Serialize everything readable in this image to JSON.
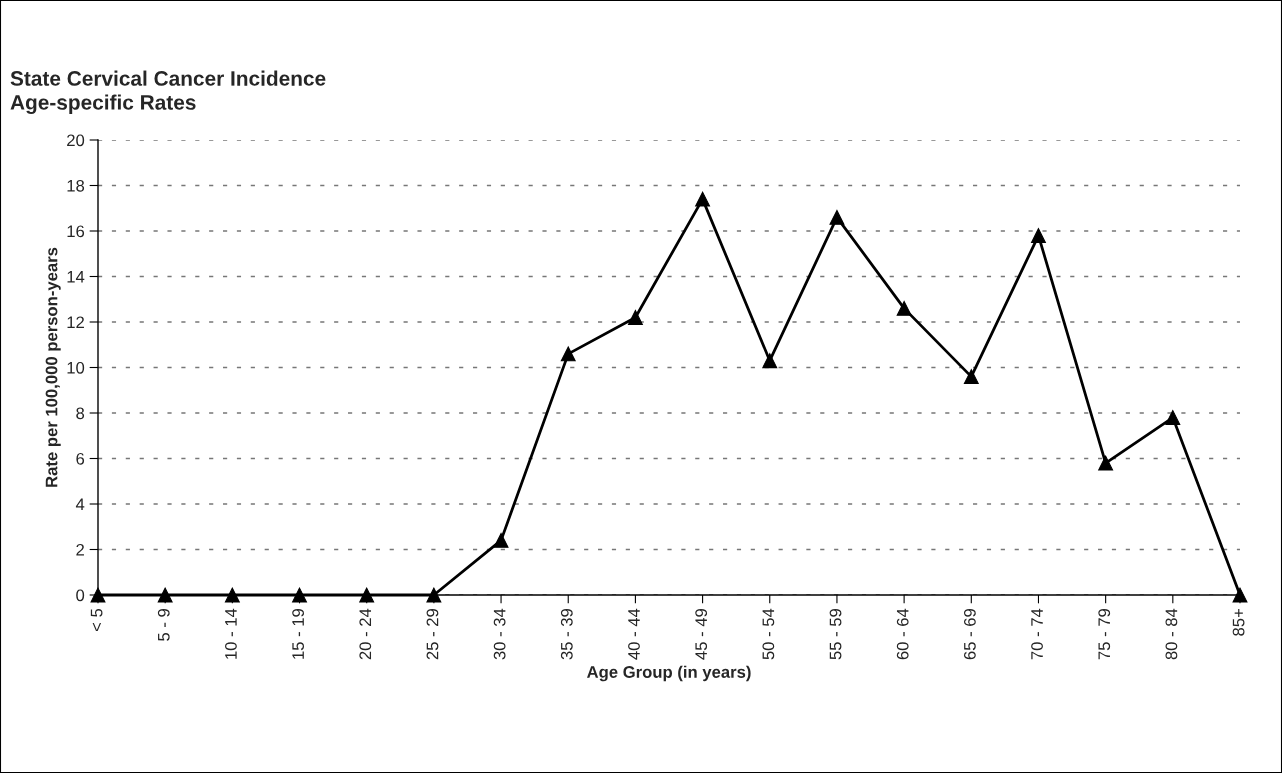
{
  "chart_data": {
    "type": "line",
    "title": "State Cervical Cancer Incidence\nAge-specific Rates",
    "xlabel": "Age Group (in years)",
    "ylabel": "Rate per 100,000 person-years",
    "categories": [
      "< 5",
      "5 - 9",
      "10 - 14",
      "15 - 19",
      "20 - 24",
      "25 - 29",
      "30 - 34",
      "35 - 39",
      "40 - 44",
      "45 - 49",
      "50 - 54",
      "55 - 59",
      "60 - 64",
      "65 - 69",
      "70 - 74",
      "75 - 79",
      "80 - 84",
      "85+"
    ],
    "series": [
      {
        "color": "#000000",
        "values": [
          0,
          0,
          0,
          0,
          0,
          0,
          2.4,
          10.6,
          12.2,
          17.4,
          10.3,
          16.6,
          12.6,
          9.6,
          15.8,
          5.8,
          7.8,
          0
        ]
      }
    ],
    "ylim": [
      0,
      20
    ],
    "yticks": [
      0,
      2,
      4,
      6,
      8,
      10,
      12,
      14,
      16,
      18,
      20
    ],
    "grid": "y",
    "marker": "triangle",
    "line_style": "solid"
  }
}
